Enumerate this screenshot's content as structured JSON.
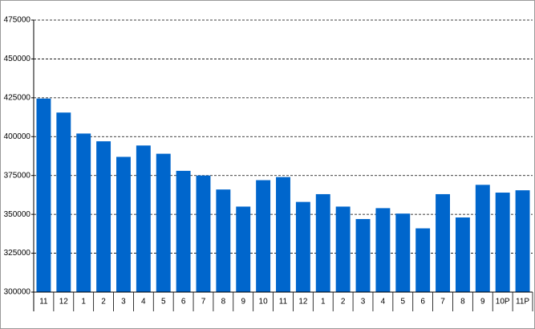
{
  "chart_data": {
    "type": "bar",
    "categories": [
      "11",
      "12",
      "1",
      "2",
      "3",
      "4",
      "5",
      "6",
      "7",
      "8",
      "9",
      "10",
      "11",
      "12",
      "1",
      "2",
      "3",
      "4",
      "5",
      "6",
      "7",
      "8",
      "9",
      "10P",
      "11P"
    ],
    "values": [
      424500,
      415500,
      402000,
      397000,
      387000,
      394300,
      389000,
      378000,
      375000,
      366000,
      355000,
      372000,
      374000,
      358000,
      363000,
      355000,
      347000,
      354000,
      350500,
      341000,
      363000,
      348000,
      369000,
      364000,
      365500
    ],
    "color": "#0066cc",
    "ylim": [
      300000,
      475000
    ],
    "yticks": [
      300000,
      325000,
      350000,
      375000,
      400000,
      425000,
      450000,
      475000
    ],
    "grid": true
  }
}
